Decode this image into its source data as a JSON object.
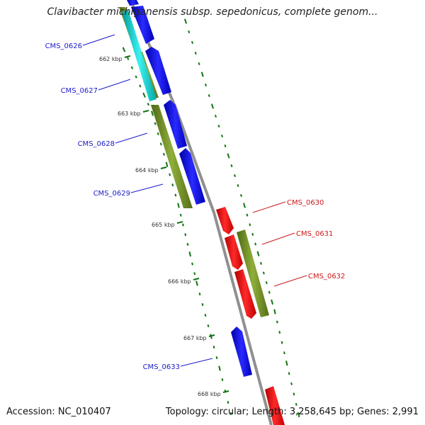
{
  "title": "Clavibacter michiganensis subsp. sepedonicus, complete genom...",
  "footer": {
    "accession": "Accession: NC_010407",
    "summary": "Topology: circular; Length: 3,258,645 bp; Genes: 2,991"
  },
  "colors": {
    "forward_cds": "#0000ee",
    "reverse_cds": "#ee0000",
    "rna": "#00c8c8",
    "gc_track": "#6b8e23",
    "backbone": "#909090",
    "ticks": "#127212",
    "label_forward": "#1a1acc",
    "label_reverse": "#cc1a1a"
  },
  "ticks": [
    {
      "label": "662 kbp"
    },
    {
      "label": "663 kbp"
    },
    {
      "label": "664 kbp"
    },
    {
      "label": "665 kbp"
    },
    {
      "label": "666 kbp"
    },
    {
      "label": "667 kbp"
    },
    {
      "label": "668 kbp"
    }
  ],
  "genes": [
    {
      "label": "CMS_0626",
      "strand": "forward"
    },
    {
      "label": "CMS_0627",
      "strand": "forward"
    },
    {
      "label": "CMS_0628",
      "strand": "forward"
    },
    {
      "label": "CMS_0629",
      "strand": "forward"
    },
    {
      "label": "CMS_0630",
      "strand": "reverse"
    },
    {
      "label": "CMS_0631",
      "strand": "reverse"
    },
    {
      "label": "CMS_0632",
      "strand": "reverse"
    },
    {
      "label": "CMS_0633",
      "strand": "forward"
    }
  ]
}
